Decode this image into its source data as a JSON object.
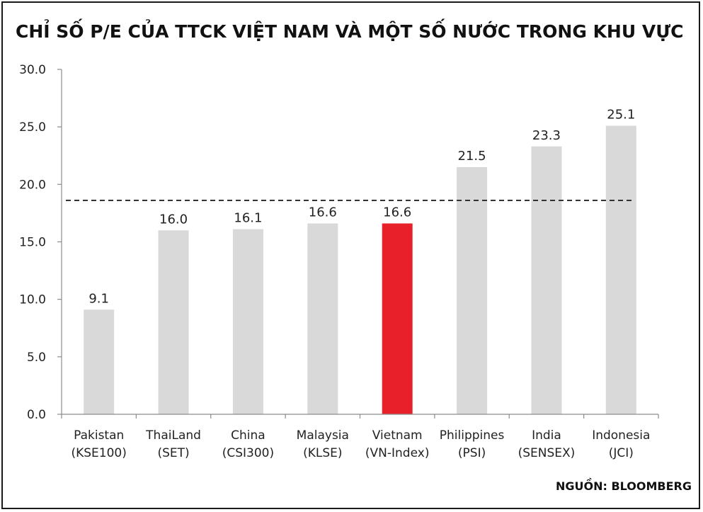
{
  "chart_data": {
    "type": "bar",
    "title": "CHỈ SỐ P/E CỦA TTCK VIỆT NAM VÀ MỘT SỐ NƯỚC TRONG KHU VỰC",
    "categories": [
      [
        "Pakistan",
        "(KSE100)"
      ],
      [
        "ThaiLand",
        "(SET)"
      ],
      [
        "China",
        "(CSI300)"
      ],
      [
        "Malaysia",
        "(KLSE)"
      ],
      [
        "Vietnam",
        "(VN-Index)"
      ],
      [
        "Philippines",
        "(PSI)"
      ],
      [
        "India",
        "(SENSEX)"
      ],
      [
        "Indonesia",
        "(JCI)"
      ]
    ],
    "values": [
      9.1,
      16.0,
      16.1,
      16.6,
      16.6,
      21.5,
      23.3,
      25.1
    ],
    "value_labels": [
      "9.1",
      "16.0",
      "16.1",
      "16.6",
      "16.6",
      "21.5",
      "23.3",
      "25.1"
    ],
    "highlight_index": 4,
    "ylim": [
      0,
      30
    ],
    "yticks": [
      "0.0",
      "5.0",
      "10.0",
      "15.0",
      "20.0",
      "25.0",
      "30.0"
    ],
    "ytick_values": [
      0,
      5,
      10,
      15,
      20,
      25,
      30
    ],
    "reference_line": 18.6,
    "grid": false,
    "colors": {
      "bar": "#d9d9d9",
      "highlight": "#e8202a",
      "axis": "#8c8c8c",
      "reference": "#333333"
    }
  },
  "source": "NGUỒN: BLOOMBERG"
}
